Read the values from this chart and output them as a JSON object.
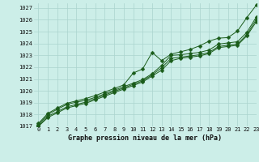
{
  "title": "Graphe pression niveau de la mer (hPa)",
  "bg_color": "#cceee8",
  "grid_color": "#aad4ce",
  "line_color": "#1a5c1a",
  "xlim": [
    -0.5,
    23
  ],
  "ylim": [
    1017,
    1027.4
  ],
  "xticks": [
    0,
    1,
    2,
    3,
    4,
    5,
    6,
    7,
    8,
    9,
    10,
    11,
    12,
    13,
    14,
    15,
    16,
    17,
    18,
    19,
    20,
    21,
    22,
    23
  ],
  "yticks": [
    1017,
    1018,
    1019,
    1020,
    1021,
    1022,
    1023,
    1024,
    1025,
    1026,
    1027
  ],
  "series": [
    [
      1017.15,
      1018.0,
      1018.45,
      1018.85,
      1019.05,
      1019.2,
      1019.45,
      1019.75,
      1020.05,
      1020.35,
      1020.65,
      1020.95,
      1021.45,
      1022.15,
      1023.0,
      1023.05,
      1023.15,
      1023.25,
      1023.45,
      1023.95,
      1024.05,
      1024.15,
      1024.95,
      1026.25
    ],
    [
      1017.05,
      1017.85,
      1018.25,
      1018.65,
      1018.85,
      1019.05,
      1019.35,
      1019.65,
      1019.95,
      1020.25,
      1020.55,
      1020.85,
      1021.35,
      1021.95,
      1022.75,
      1022.85,
      1022.95,
      1023.05,
      1023.25,
      1023.75,
      1023.85,
      1023.95,
      1024.75,
      1026.05
    ],
    [
      1017.0,
      1017.75,
      1018.15,
      1018.55,
      1018.75,
      1018.95,
      1019.25,
      1019.55,
      1019.85,
      1020.15,
      1020.45,
      1020.75,
      1021.25,
      1021.75,
      1022.55,
      1022.75,
      1022.85,
      1022.95,
      1023.15,
      1023.65,
      1023.75,
      1023.85,
      1024.65,
      1025.85
    ],
    [
      1017.25,
      1018.1,
      1018.55,
      1018.95,
      1019.15,
      1019.35,
      1019.6,
      1019.9,
      1020.2,
      1020.5,
      1021.5,
      1021.85,
      1023.25,
      1022.55,
      1023.1,
      1023.3,
      1023.5,
      1023.8,
      1024.2,
      1024.45,
      1024.5,
      1025.05,
      1026.2,
      1027.25
    ]
  ],
  "markersize": 2.5,
  "linewidth": 0.7,
  "xlabel_fontsize": 6.0,
  "tick_fontsize": 5.0
}
